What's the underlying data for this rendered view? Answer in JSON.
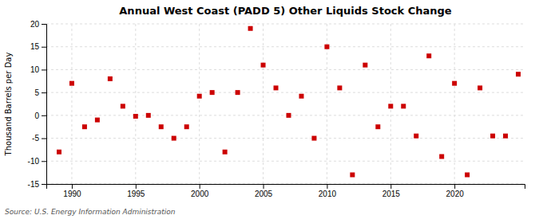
{
  "chart_data": {
    "type": "scatter",
    "title": "Annual West Coast (PADD 5) Other Liquids Stock Change",
    "ylabel": "Thousand Barrels per Day",
    "source": "Source: U.S. Energy Information Administration",
    "x": [
      1989,
      1990,
      1991,
      1992,
      1993,
      1994,
      1995,
      1996,
      1997,
      1998,
      1999,
      2000,
      2001,
      2002,
      2003,
      2004,
      2005,
      2006,
      2007,
      2008,
      2009,
      2010,
      2011,
      2012,
      2013,
      2014,
      2015,
      2016,
      2017,
      2018,
      2019,
      2020,
      2021,
      2022,
      2023,
      2024,
      2025
    ],
    "values": [
      -8.0,
      7.0,
      -2.5,
      -1.0,
      8.0,
      2.0,
      -0.2,
      0.0,
      -2.5,
      -5.0,
      -2.5,
      4.2,
      5.0,
      -8.0,
      5.0,
      19.0,
      11.0,
      6.0,
      0.0,
      4.2,
      -5.0,
      15.0,
      6.0,
      -13.0,
      11.0,
      -2.5,
      2.0,
      2.0,
      -4.5,
      13.0,
      -9.0,
      7.0,
      -13.0,
      6.0,
      -4.5,
      -4.5,
      9.0
    ],
    "color": "#cc0000",
    "marker": "square",
    "xlim": [
      1988.0,
      2025.5
    ],
    "ylim": [
      -15,
      20
    ],
    "xticks": [
      1990,
      1995,
      2000,
      2005,
      2010,
      2015,
      2020
    ],
    "yticks": [
      -15,
      -10,
      -5,
      0,
      5,
      10,
      15,
      20
    ],
    "grid": true
  }
}
